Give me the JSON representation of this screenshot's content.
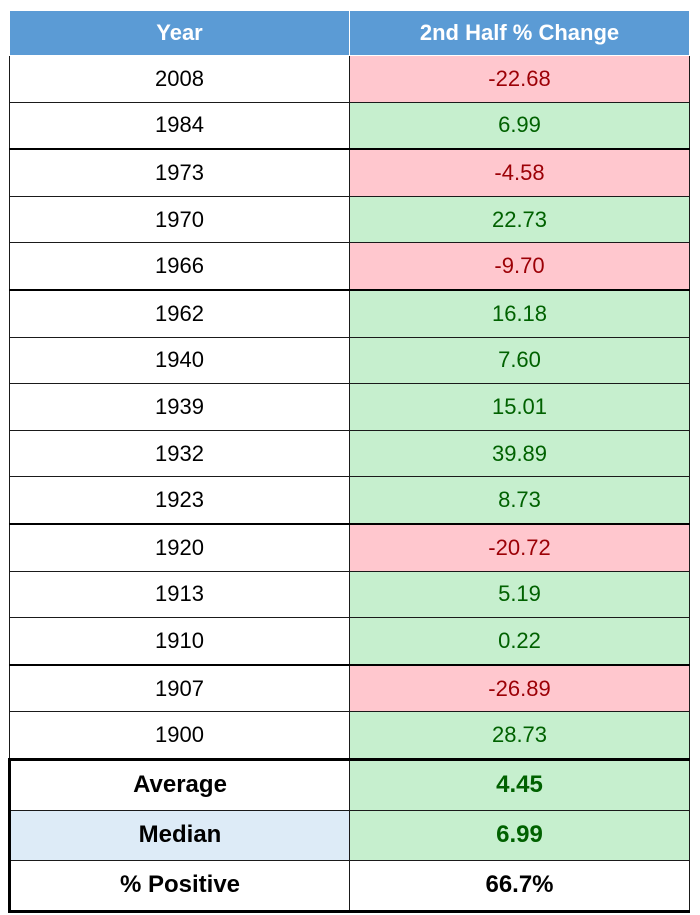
{
  "table": {
    "header": [
      "Year",
      "2nd Half % Change"
    ],
    "rows": [
      [
        "2008",
        "-22.68"
      ],
      [
        "1984",
        "6.99"
      ],
      [
        "1973",
        "-4.58"
      ],
      [
        "1970",
        "22.73"
      ],
      [
        "1966",
        "-9.70"
      ],
      [
        "1962",
        "16.18"
      ],
      [
        "1940",
        "7.60"
      ],
      [
        "1939",
        "15.01"
      ],
      [
        "1932",
        "39.89"
      ],
      [
        "1923",
        "8.73"
      ],
      [
        "1920",
        "-20.72"
      ],
      [
        "1913",
        "5.19"
      ],
      [
        "1910",
        "0.22"
      ],
      [
        "1907",
        "-26.89"
      ],
      [
        "1900",
        "28.73"
      ]
    ],
    "summary": [
      [
        "Average",
        "4.45"
      ],
      [
        "Median",
        "6.99"
      ],
      [
        "% Positive",
        "66.7%"
      ]
    ]
  }
}
